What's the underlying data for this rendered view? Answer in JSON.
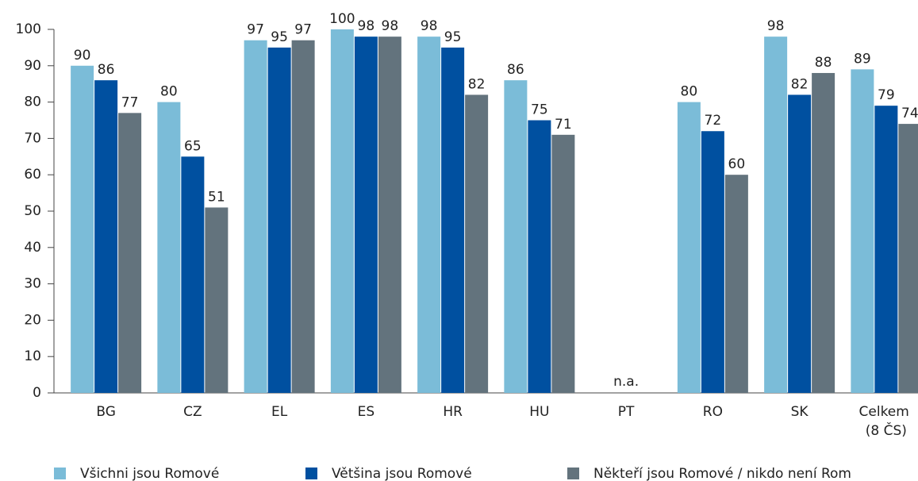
{
  "chart_data": {
    "type": "bar",
    "categories": [
      "BG",
      "CZ",
      "EL",
      "ES",
      "HR",
      "HU",
      "PT",
      "RO",
      "SK",
      "Celkem (8 ČS)"
    ],
    "series": [
      {
        "name": "Všichni jsou Romové",
        "color": "#7bbcd8",
        "values": [
          90,
          80,
          97,
          100,
          98,
          86,
          null,
          80,
          98,
          89
        ]
      },
      {
        "name": "Většina jsou Romové",
        "color": "#0050a0",
        "values": [
          86,
          65,
          95,
          98,
          95,
          75,
          null,
          72,
          82,
          79
        ]
      },
      {
        "name": "Někteří jsou Romové / nikdo není Rom",
        "color": "#63737d",
        "values": [
          77,
          51,
          97,
          98,
          82,
          71,
          null,
          60,
          88,
          74
        ]
      }
    ],
    "missing_label": "n.a.",
    "ylim": [
      0,
      100
    ],
    "yticks": [
      0,
      10,
      20,
      30,
      40,
      50,
      60,
      70,
      80,
      90,
      100
    ],
    "grid": false,
    "legend": "bottom"
  }
}
